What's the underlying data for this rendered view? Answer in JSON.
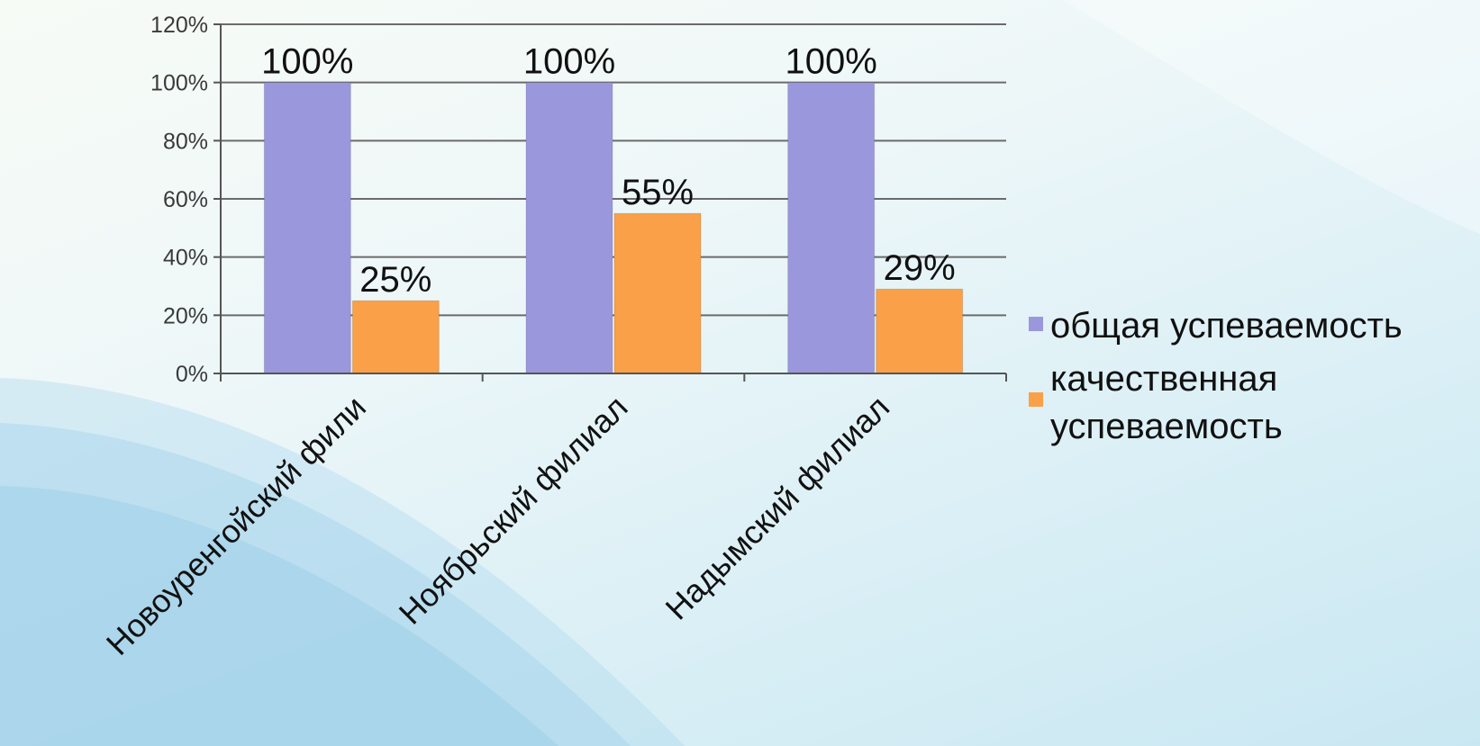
{
  "chart_data": {
    "type": "bar",
    "categories": [
      "Новоуренгойский фили",
      "Ноябрьский филиал",
      "Надымский филиал"
    ],
    "series": [
      {
        "name": "общая успеваемость",
        "values": [
          100,
          100,
          100
        ],
        "labels": [
          "100%",
          "100%",
          "100%"
        ],
        "color": "#9b97dc"
      },
      {
        "name": "качественная успеваемость",
        "values": [
          25,
          55,
          29
        ],
        "labels": [
          "25%",
          "55%",
          "29%"
        ],
        "color": "#f9a049"
      }
    ],
    "y_ticks": [
      0,
      20,
      40,
      60,
      80,
      100,
      120
    ],
    "y_tick_labels": [
      "0%",
      "20%",
      "40%",
      "60%",
      "80%",
      "100%",
      "120%"
    ],
    "ylim": [
      0,
      120
    ],
    "title": "",
    "xlabel": "",
    "ylabel": "",
    "grid": true,
    "legend_position": "right",
    "legend": {
      "items": [
        {
          "lines": [
            "общая успеваемость"
          ]
        },
        {
          "lines": [
            "качественная",
            "успеваемость"
          ]
        }
      ]
    }
  }
}
